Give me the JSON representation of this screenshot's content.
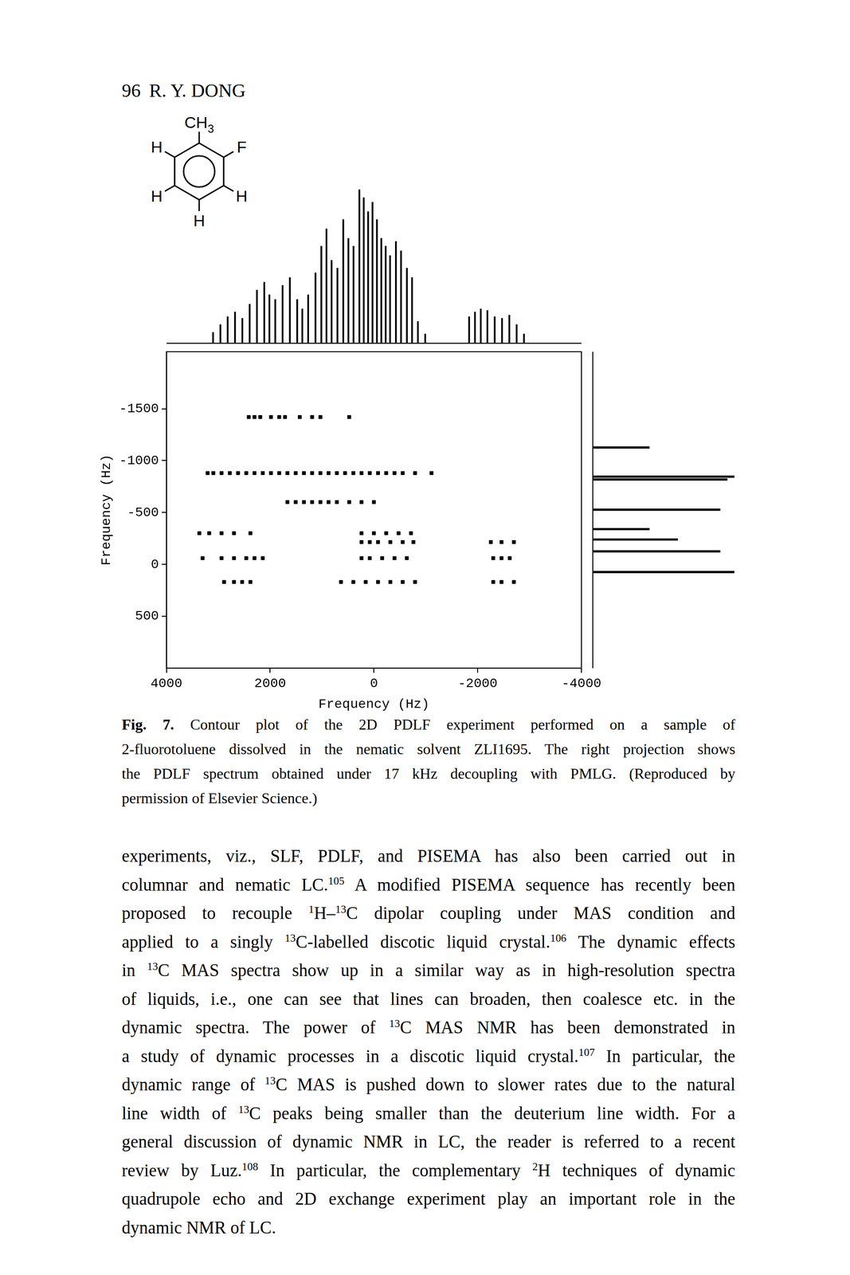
{
  "header": {
    "page": "96",
    "author": "R. Y. DONG"
  },
  "molecule": {
    "substituents": [
      [
        "CH",
        {
          "sub": "3"
        }
      ],
      [
        "F"
      ],
      [
        "H"
      ],
      [
        "H"
      ],
      [
        "H"
      ],
      [
        "H"
      ]
    ]
  },
  "chart_data": [
    {
      "type": "scatter",
      "xlabel": "Frequency (Hz)",
      "ylabel": "Frequency (Hz)",
      "x": [
        2413,
        2302,
        2191,
        1984,
        1826,
        1714,
        1429,
        1191,
        1032,
        477,
        3206,
        3095,
        2937,
        2778,
        2619,
        2461,
        2302,
        2143,
        1984,
        1826,
        1667,
        1508,
        1350,
        1191,
        1032,
        874,
        715,
        556,
        397,
        239,
        80,
        -79,
        -237,
        -396,
        -555,
        -793,
        -1110,
        1667,
        1508,
        1350,
        1191,
        1032,
        874,
        715,
        477,
        239,
        0,
        3365,
        3175,
        2937,
        2698,
        2381,
        239,
        0,
        -237,
        -475,
        -714,
        239,
        80,
        -79,
        -317,
        -555,
        -761,
        -2253,
        -2459,
        -2697,
        3302,
        2937,
        2698,
        2461,
        2302,
        2143,
        239,
        80,
        -158,
        -396,
        -634,
        -2300,
        -2459,
        -2618,
        2889,
        2698,
        2540,
        2381,
        635,
        397,
        159,
        -79,
        -317,
        -555,
        -793,
        -2300,
        -2459,
        -2697
      ],
      "values": [
        -1420,
        -1420,
        -1420,
        -1420,
        -1420,
        -1420,
        -1420,
        -1420,
        -1420,
        -1420,
        -880,
        -880,
        -880,
        -880,
        -880,
        -880,
        -880,
        -880,
        -880,
        -880,
        -880,
        -880,
        -880,
        -880,
        -880,
        -880,
        -880,
        -880,
        -880,
        -880,
        -880,
        -880,
        -880,
        -880,
        -880,
        -880,
        -880,
        -600,
        -600,
        -600,
        -600,
        -600,
        -600,
        -600,
        -600,
        -600,
        -600,
        -300,
        -300,
        -300,
        -300,
        -300,
        -300,
        -300,
        -300,
        -300,
        -300,
        -215,
        -215,
        -215,
        -215,
        -215,
        -215,
        -215,
        -215,
        -215,
        -60,
        -60,
        -60,
        -60,
        -60,
        -60,
        -60,
        -60,
        -60,
        -60,
        -60,
        -60,
        -60,
        -60,
        170,
        170,
        170,
        170,
        170,
        170,
        170,
        170,
        170,
        170,
        170,
        170,
        170,
        170
      ],
      "xlim": [
        4000,
        -4000
      ],
      "xticks": [
        4000,
        2000,
        0,
        -2000,
        -4000
      ],
      "ylim": [
        1000,
        -2050
      ],
      "yticks": [
        500,
        0,
        -500,
        -1000,
        -1500
      ],
      "grid": false,
      "marker": "square",
      "color": "#000000"
    },
    {
      "type": "bar",
      "x": [
        3492,
        3333,
        3175,
        3016,
        2857,
        2698,
        2540,
        2381,
        2270,
        2143,
        1984,
        1826,
        1667,
        1556,
        1429,
        1270,
        1143,
        1032,
        921,
        794,
        667,
        556,
        445,
        318,
        223,
        128,
        33,
        -63,
        -158,
        -253,
        -348,
        -475,
        -586,
        -713,
        -825,
        -952,
        -1110,
        -2063,
        -2190,
        -2316,
        -2459,
        -2618,
        -2777,
        -2935,
        -3094,
        -3253
      ],
      "values": [
        7,
        12,
        17,
        20,
        16,
        25,
        34,
        39,
        31,
        28,
        37,
        42,
        28,
        22,
        31,
        45,
        62,
        73,
        53,
        48,
        79,
        67,
        62,
        98,
        93,
        84,
        90,
        79,
        67,
        62,
        56,
        65,
        59,
        48,
        42,
        14,
        6,
        17,
        20,
        22,
        21,
        17,
        16,
        18,
        12,
        6
      ],
      "xlim": [
        4000,
        -4000
      ],
      "ylim": [
        0,
        100
      ],
      "tick_labels": false,
      "color": "#000000"
    },
    {
      "type": "bar",
      "orientation": "horizontal",
      "x": [
        -1228,
        -900,
        -868,
        -528,
        -310,
        -193,
        -60,
        173
      ],
      "values": [
        40,
        100,
        95,
        90,
        40,
        60,
        90,
        100
      ],
      "xlim": [
        0,
        100
      ],
      "ylim": [
        1000,
        -2050
      ],
      "tick_labels": false,
      "color": "#000000"
    }
  ],
  "caption": [
    [
      {
        "b": "Fig. 7."
      },
      " Contour plot of the 2D PDLF experiment performed on a sample of"
    ],
    [
      "2-fluorotoluene dissolved in the nematic solvent ZLI1695. The right projection shows"
    ],
    [
      "the PDLF spectrum obtained under 17 kHz decoupling with PMLG. (Reproduced by"
    ],
    [
      "permission of Elsevier Science.)"
    ]
  ],
  "body": [
    [
      "experiments, viz., SLF, PDLF, and PISEMA has also been carried out in"
    ],
    [
      "columnar and nematic LC.",
      {
        "sup": "105"
      },
      " A modified PISEMA sequence has recently been"
    ],
    [
      "proposed to recouple ",
      {
        "sup": "1"
      },
      "H–",
      {
        "sup": "13"
      },
      "C dipolar coupling under MAS condition and"
    ],
    [
      "applied to a singly ",
      {
        "sup": "13"
      },
      "C-labelled discotic liquid crystal.",
      {
        "sup": "106"
      },
      " The dynamic effects"
    ],
    [
      "in ",
      {
        "sup": "13"
      },
      "C MAS spectra show up in a similar way as in high-resolution spectra"
    ],
    [
      "of liquids, i.e., one can see that lines can broaden, then coalesce etc. in the"
    ],
    [
      "dynamic spectra. The power of ",
      {
        "sup": "13"
      },
      "C MAS NMR has been demonstrated in"
    ],
    [
      "a study of dynamic processes in a discotic liquid crystal.",
      {
        "sup": "107"
      },
      " In particular, the"
    ],
    [
      "dynamic range of ",
      {
        "sup": "13"
      },
      "C MAS is pushed down to slower rates due to the natural"
    ],
    [
      "line width of ",
      {
        "sup": "13"
      },
      "C peaks being smaller than the deuterium line width. For a"
    ],
    [
      "general discussion of dynamic NMR in LC, the reader is referred to a recent"
    ],
    [
      "review by Luz.",
      {
        "sup": "108"
      },
      " In particular, the complementary ",
      {
        "sup": "2"
      },
      "H techniques of dynamic"
    ],
    [
      "quadrupole echo and 2D exchange experiment play an important role in the"
    ],
    [
      "dynamic NMR of LC."
    ]
  ]
}
